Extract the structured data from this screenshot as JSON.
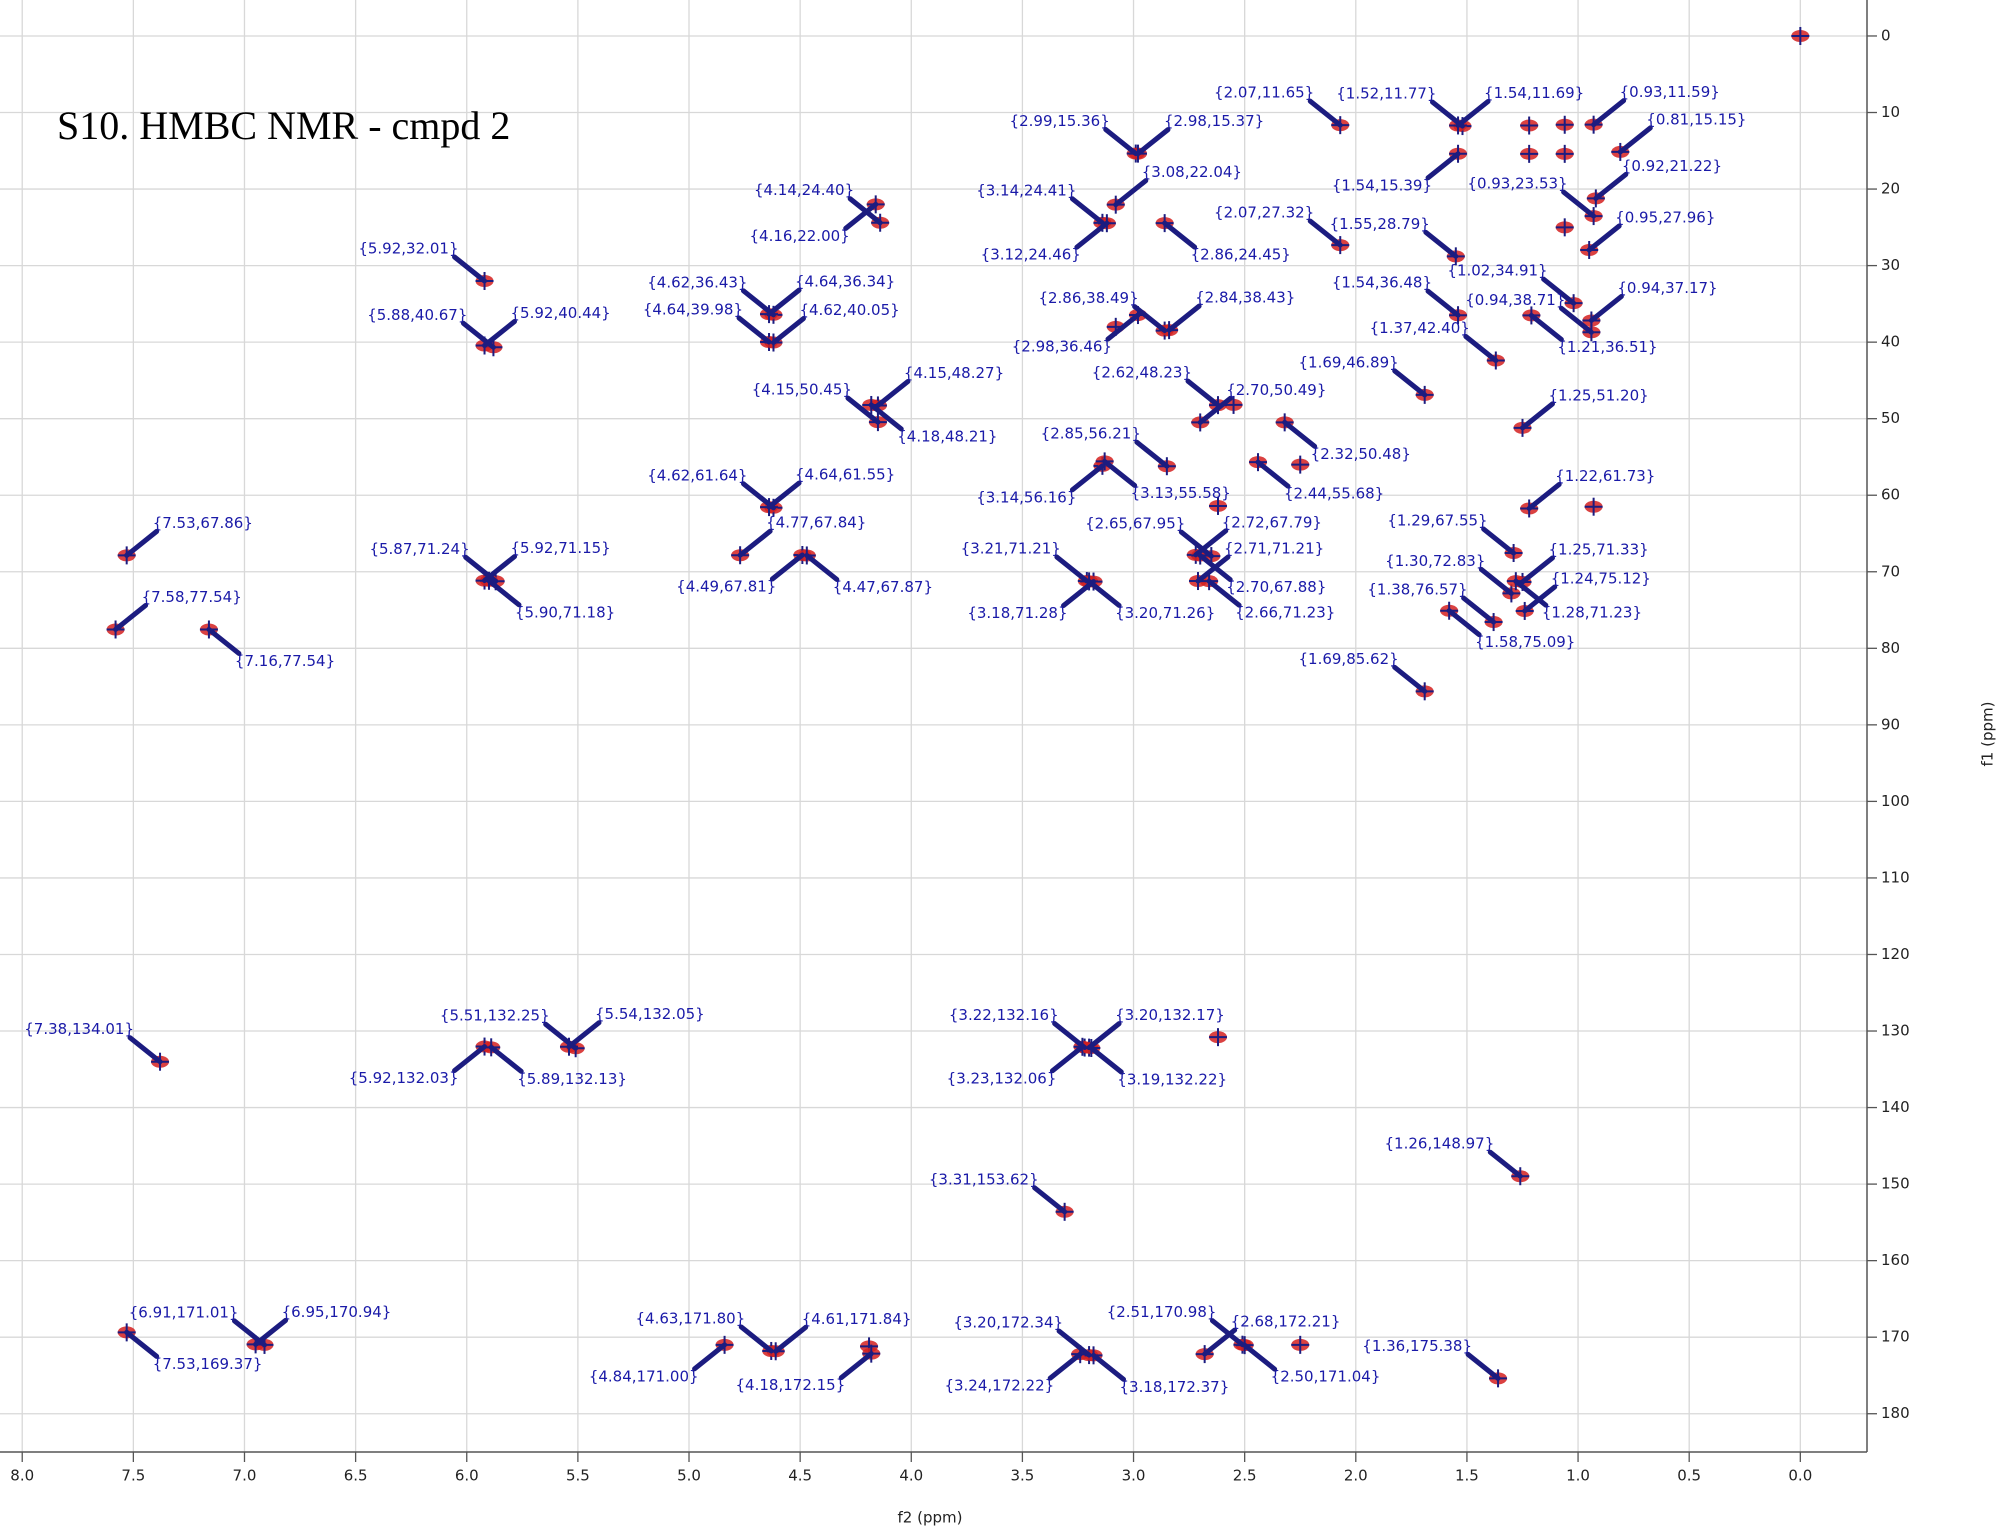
{
  "chart_data": {
    "type": "scatter",
    "title": "S10. HMBC NMR - cmpd 2",
    "x_label": "f2 (ppm)",
    "y_label": "f1 (ppm)",
    "x_inverted": true,
    "y_inverted": true,
    "xlim": [
      8.1,
      -0.3
    ],
    "ylim": [
      -4.7,
      185
    ],
    "xticks": [
      {
        "value": 8,
        "label": "8.0"
      },
      7.5,
      {
        "value": 7,
        "label": "7.0"
      },
      6.5,
      {
        "value": 6,
        "label": "6.0"
      },
      5.5,
      {
        "value": 5,
        "label": "5.0"
      },
      4.5,
      {
        "value": 4,
        "label": "4.0"
      },
      3.5,
      {
        "value": 3,
        "label": "3.0"
      },
      2.5,
      {
        "value": 2,
        "label": "2.0"
      },
      1.5,
      {
        "value": 1,
        "label": "1.0"
      },
      0.5,
      {
        "value": 0,
        "label": "0.0"
      }
    ],
    "yticks": [
      0,
      10,
      20,
      30,
      40,
      50,
      60,
      70,
      80,
      90,
      100,
      110,
      120,
      130,
      140,
      150,
      160,
      170,
      180
    ],
    "grid": true,
    "peak_color": "#d42020",
    "cross_color": "#1c1c80",
    "x": [
      2.07,
      1.52,
      1.54,
      0.93,
      2.99,
      2.98,
      0.81,
      3.08,
      1.54,
      0.93,
      0.92,
      4.14,
      3.14,
      2.07,
      1.55,
      0.95,
      4.16,
      3.12,
      2.86,
      5.92,
      1.02,
      4.62,
      4.64,
      1.54,
      0.94,
      2.86,
      2.84,
      0.94,
      5.88,
      5.92,
      4.64,
      4.62,
      2.98,
      1.37,
      1.21,
      1.69,
      4.15,
      2.62,
      4.15,
      2.7,
      1.25,
      4.18,
      2.85,
      2.32,
      4.62,
      4.64,
      1.22,
      3.14,
      3.13,
      2.44,
      7.53,
      4.77,
      2.65,
      2.72,
      1.29,
      5.87,
      5.92,
      3.21,
      2.71,
      1.25,
      1.3,
      4.49,
      4.47,
      7.58,
      2.7,
      1.38,
      1.24,
      5.9,
      3.18,
      3.2,
      2.66,
      1.28,
      1.58,
      7.16,
      1.69,
      7.38,
      5.51,
      5.54,
      3.22,
      3.2,
      5.92,
      5.89,
      3.23,
      3.19,
      1.26,
      3.31,
      6.91,
      6.95,
      4.63,
      4.61,
      3.2,
      2.51,
      2.68,
      1.36,
      7.53,
      4.84,
      4.18,
      3.24,
      3.18,
      2.5
    ],
    "y": [
      11.65,
      11.77,
      11.69,
      11.59,
      15.36,
      15.37,
      15.15,
      22.04,
      15.39,
      23.53,
      21.22,
      24.4,
      24.41,
      27.32,
      28.79,
      27.96,
      22.0,
      24.46,
      24.45,
      32.01,
      34.91,
      36.43,
      36.34,
      36.48,
      37.17,
      38.49,
      38.43,
      38.71,
      40.67,
      40.44,
      39.98,
      40.05,
      36.46,
      42.4,
      36.51,
      46.89,
      48.27,
      48.23,
      50.45,
      50.49,
      51.2,
      48.21,
      56.21,
      50.48,
      61.64,
      61.55,
      61.73,
      56.16,
      55.58,
      55.68,
      67.86,
      67.84,
      67.95,
      67.79,
      67.55,
      71.24,
      71.15,
      71.21,
      71.21,
      71.33,
      72.83,
      67.81,
      67.87,
      77.54,
      67.88,
      76.57,
      75.12,
      71.18,
      71.28,
      71.26,
      71.23,
      71.23,
      75.09,
      77.54,
      85.62,
      134.01,
      132.25,
      132.05,
      132.16,
      132.17,
      132.03,
      132.13,
      132.06,
      132.22,
      148.97,
      153.62,
      171.01,
      170.94,
      171.8,
      171.84,
      172.34,
      170.98,
      172.21,
      175.38,
      169.37,
      171.0,
      172.15,
      172.22,
      172.37,
      171.04
    ],
    "value_labels": [
      "{2.07,11.65}",
      "{1.52,11.77}",
      "{1.54,11.69}",
      "{0.93,11.59}",
      "{2.99,15.36}",
      "{2.98,15.37}",
      "{0.81,15.15}",
      "{3.08,22.04}",
      "{1.54,15.39}",
      "{0.93,23.53}",
      "{0.92,21.22}",
      "{4.14,24.40}",
      "{3.14,24.41}",
      "{2.07,27.32}",
      "{1.55,28.79}",
      "{0.95,27.96}",
      "{4.16,22.00}",
      "{3.12,24.46}",
      "{2.86,24.45}",
      "{5.92,32.01}",
      "{1.02,34.91}",
      "{4.62,36.43}",
      "{4.64,36.34}",
      "{1.54,36.48}",
      "{0.94,37.17}",
      "{2.86,38.49}",
      "{2.84,38.43}",
      "{0.94,38.71}",
      "{5.88,40.67}",
      "{5.92,40.44}",
      "{4.64,39.98}",
      "{4.62,40.05}",
      "{2.98,36.46}",
      "{1.37,42.40}",
      "{1.21,36.51}",
      "{1.69,46.89}",
      "{4.15,48.27}",
      "{2.62,48.23}",
      "{4.15,50.45}",
      "{2.70,50.49}",
      "{1.25,51.20}",
      "{4.18,48.21}",
      "{2.85,56.21}",
      "{2.32,50.48}",
      "{4.62,61.64}",
      "{4.64,61.55}",
      "{1.22,61.73}",
      "{3.14,56.16}",
      "{3.13,55.58}",
      "{2.44,55.68}",
      "{7.53,67.86}",
      "{4.77,67.84}",
      "{2.65,67.95}",
      "{2.72,67.79}",
      "{1.29,67.55}",
      "{5.87,71.24}",
      "{5.92,71.15}",
      "{3.21,71.21}",
      "{2.71,71.21}",
      "{1.25,71.33}",
      "{1.30,72.83}",
      "{4.49,67.81}",
      "{4.47,67.87}",
      "{7.58,77.54}",
      "{2.70,67.88}",
      "{1.38,76.57}",
      "{1.24,75.12}",
      "{5.90,71.18}",
      "{3.18,71.28}",
      "{3.20,71.26}",
      "{2.66,71.23}",
      "{1.28,71.23}",
      "{1.58,75.09}",
      "{7.16,77.54}",
      "{1.69,85.62}",
      "{7.38,134.01}",
      "{5.51,132.25}",
      "{5.54,132.05}",
      "{3.22,132.16}",
      "{3.20,132.17}",
      "{5.92,132.03}",
      "{5.89,132.13}",
      "{3.23,132.06}",
      "{3.19,132.22}",
      "{1.26,148.97}",
      "{3.31,153.62}",
      "{6.91,171.01}",
      "{6.95,170.94}",
      "{4.63,171.80}",
      "{4.61,171.84}",
      "{3.20,172.34}",
      "{2.51,170.98}",
      "{2.68,172.21}",
      "{1.36,175.38}",
      "{7.53,169.37}",
      "{4.84,171.00}",
      "{4.18,172.15}",
      "{3.24,172.22}",
      "{3.18,172.37}",
      "{2.50,171.04}"
    ],
    "unlabeled_peaks": {
      "x": [
        0.0,
        1.22,
        1.06,
        1.22,
        1.06,
        2.25,
        2.62,
        2.55,
        3.08,
        2.62,
        2.25,
        1.06,
        0.93,
        4.19
      ],
      "y": [
        0.0,
        11.7,
        11.6,
        15.4,
        15.4,
        56.0,
        61.4,
        48.2,
        38.0,
        130.8,
        171.0,
        25.0,
        61.5,
        171.2
      ]
    }
  }
}
